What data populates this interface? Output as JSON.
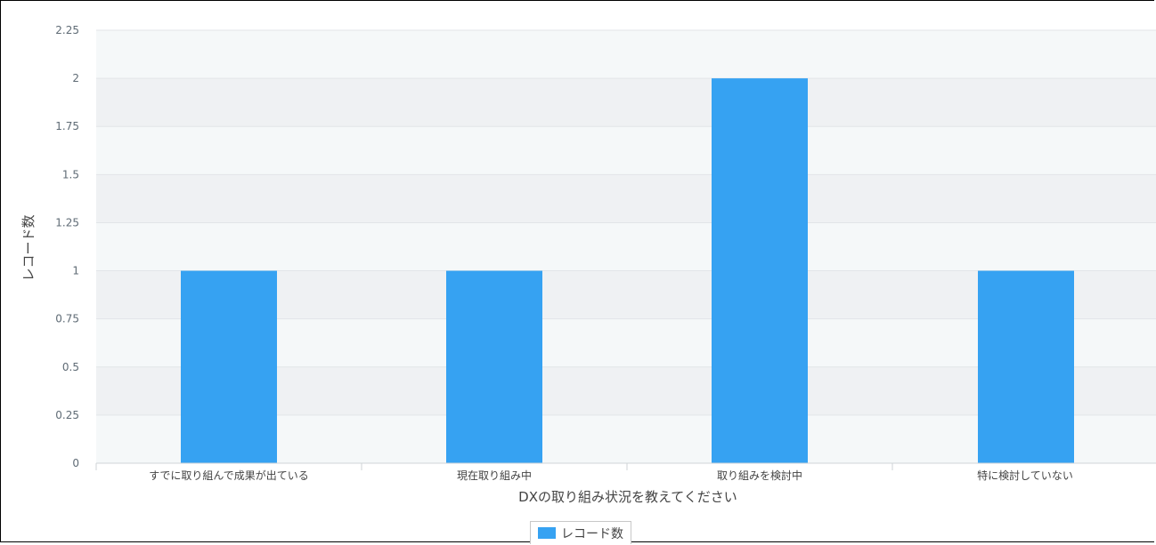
{
  "chart_data": {
    "type": "bar",
    "categories": [
      "すでに取り組んで成果が出ている",
      "現在取り組み中",
      "取り組みを検討中",
      "特に検討していない"
    ],
    "series": [
      {
        "name": "レコード数",
        "values": [
          1,
          1,
          2,
          1
        ]
      }
    ],
    "xlabel": "DXの取り組み状況を教えてください",
    "ylabel": "レコード数",
    "ylim": [
      0,
      2.25
    ],
    "yticks": [
      "0",
      "0.25",
      "0.5",
      "0.75",
      "1",
      "1.25",
      "1.5",
      "1.75",
      "2",
      "2.25"
    ],
    "grid": true,
    "legend_position": "bottom-center",
    "colors": {
      "bar": "#36a2f2",
      "band_light": "#f5f8f9",
      "band_dark": "#eff1f3",
      "gridline": "#e2e5e8"
    }
  }
}
